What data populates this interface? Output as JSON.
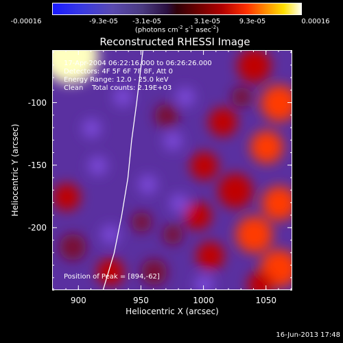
{
  "chart_data": {
    "type": "heatmap",
    "title": "Reconstructed RHESSI Image",
    "xlabel": "Heliocentric X (arcsec)",
    "ylabel": "Heliocentric Y (arcsec)",
    "xlim": [
      879,
      1071
    ],
    "ylim": [
      -250,
      -58
    ],
    "x_ticks": [
      900,
      950,
      1000,
      1050
    ],
    "y_ticks": [
      -100,
      -150,
      -200
    ],
    "colorbar": {
      "ticks": [
        "-0.00016",
        "-9.3e-05",
        "-3.1e-05",
        "3.1e-05",
        "9.3e-05",
        "0.00016"
      ],
      "unit_text": "(photons cm",
      "unit_sup1": "-2",
      "unit_mid": " s",
      "unit_sup2": "-1",
      "unit_end": " asec",
      "unit_sup3": "-2",
      "unit_close": ")"
    },
    "annotations": {
      "line1": "17-Apr-2004 06:22:16.000 to 06:26:26.000",
      "line2": "Detectors: 4F 5F 6F 7F 8F, Att 0",
      "line3": "Energy Range: 12.0 - 25.0 keV",
      "line4": "Clean    Total counts: 2.19E+03",
      "peak": "Position of Peak = [894,-62]"
    },
    "limb_curve": [
      [
        919,
        -250
      ],
      [
        928,
        -220
      ],
      [
        934,
        -190
      ],
      [
        939,
        -160
      ],
      [
        942,
        -130
      ],
      [
        946,
        -100
      ],
      [
        949,
        -75
      ],
      [
        951,
        -58
      ]
    ],
    "blobs": [
      {
        "x": 893,
        "y": -62,
        "v": 1.0,
        "r": 16
      },
      {
        "x": 1040,
        "y": -70,
        "v": 0.55,
        "r": 12
      },
      {
        "x": 1060,
        "y": -100,
        "v": 0.7,
        "r": 12
      },
      {
        "x": 1015,
        "y": -115,
        "v": 0.6,
        "r": 10
      },
      {
        "x": 1050,
        "y": -135,
        "v": 0.65,
        "r": 11
      },
      {
        "x": 1000,
        "y": -150,
        "v": 0.55,
        "r": 10
      },
      {
        "x": 1025,
        "y": -170,
        "v": 0.6,
        "r": 12
      },
      {
        "x": 1060,
        "y": -180,
        "v": 0.75,
        "r": 11
      },
      {
        "x": 995,
        "y": -190,
        "v": 0.5,
        "r": 10
      },
      {
        "x": 1040,
        "y": -205,
        "v": 0.7,
        "r": 12
      },
      {
        "x": 1005,
        "y": -222,
        "v": 0.55,
        "r": 10
      },
      {
        "x": 1060,
        "y": -232,
        "v": 0.75,
        "r": 12
      },
      {
        "x": 890,
        "y": -175,
        "v": 0.5,
        "r": 10
      },
      {
        "x": 895,
        "y": -215,
        "v": 0.45,
        "r": 10
      },
      {
        "x": 960,
        "y": -235,
        "v": 0.4,
        "r": 10
      },
      {
        "x": 975,
        "y": -205,
        "v": 0.35,
        "r": 8
      },
      {
        "x": 925,
        "y": -235,
        "v": 0.5,
        "r": 10
      },
      {
        "x": 970,
        "y": -110,
        "v": 0.45,
        "r": 9
      },
      {
        "x": 950,
        "y": -195,
        "v": 0.35,
        "r": 8
      },
      {
        "x": 1030,
        "y": -95,
        "v": 0.35,
        "r": 8
      },
      {
        "x": 1045,
        "y": -245,
        "v": 0.6,
        "r": 9
      }
    ]
  },
  "footer": {
    "date": "16-Jun-2013 17:48"
  }
}
